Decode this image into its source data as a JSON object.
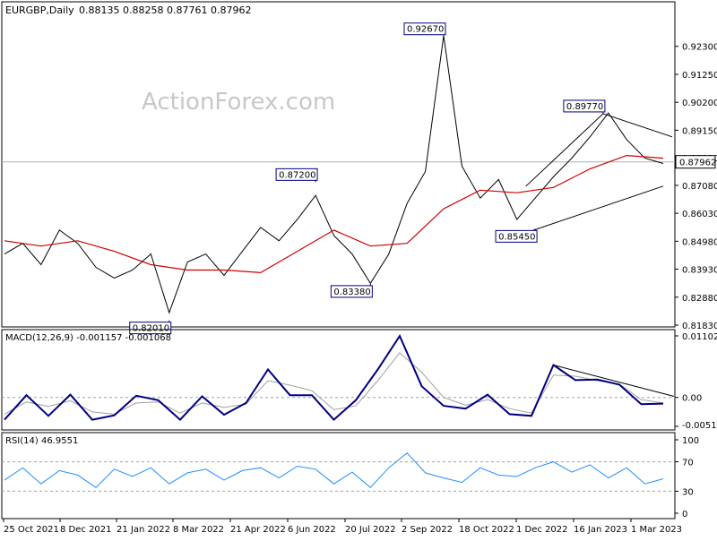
{
  "header": {
    "symbol": "EURGBP,Daily",
    "ohlc": "0.88135 0.88258 0.87761 0.87962"
  },
  "watermark": "ActionForex.com",
  "colors": {
    "price": "#000000",
    "ma": "#cc0000",
    "macd": "#000080",
    "signal": "#a0a0a0",
    "rsi": "#1e90ff",
    "annotation_border": "#000080",
    "current_price_bg": "#ffffff"
  },
  "chart_data": [
    {
      "type": "line",
      "name": "EURGBP Daily",
      "xlabel": "",
      "ylabel": "",
      "x_ticks": [
        "25 Oct 2021",
        "8 Dec 2021",
        "21 Jan 2022",
        "8 Mar 2022",
        "21 Apr 2022",
        "6 Jun 2022",
        "20 Jul 2022",
        "2 Sep 2022",
        "18 Oct 2022",
        "1 Dec 2022",
        "16 Jan 2023",
        "1 Mar 2023"
      ],
      "y_ticks": [
        "0.92300",
        "0.91250",
        "0.90200",
        "0.89150",
        "0.88120",
        "0.87080",
        "0.86030",
        "0.84980",
        "0.83930",
        "0.82880",
        "0.81830"
      ],
      "ylim": [
        0.8183,
        0.9293
      ],
      "current_price": "0.87962",
      "annotations": [
        "0.92670",
        "0.89770",
        "0.87200",
        "0.85450",
        "0.83380",
        "0.82010"
      ],
      "series": [
        {
          "role": "price",
          "points": [
            [
              "2021-10-25",
              0.845
            ],
            [
              "2021-11-08",
              0.849
            ],
            [
              "2021-11-22",
              0.841
            ],
            [
              "2021-12-06",
              0.854
            ],
            [
              "2021-12-20",
              0.849
            ],
            [
              "2022-01-03",
              0.84
            ],
            [
              "2022-01-17",
              0.836
            ],
            [
              "2022-01-31",
              0.839
            ],
            [
              "2022-02-14",
              0.845
            ],
            [
              "2022-02-28",
              0.823
            ],
            [
              "2022-03-14",
              0.842
            ],
            [
              "2022-03-28",
              0.845
            ],
            [
              "2022-04-11",
              0.837
            ],
            [
              "2022-04-25",
              0.846
            ],
            [
              "2022-05-09",
              0.855
            ],
            [
              "2022-05-23",
              0.85
            ],
            [
              "2022-06-06",
              0.858
            ],
            [
              "2022-06-20",
              0.867
            ],
            [
              "2022-07-04",
              0.852
            ],
            [
              "2022-07-18",
              0.845
            ],
            [
              "2022-08-01",
              0.834
            ],
            [
              "2022-08-15",
              0.845
            ],
            [
              "2022-08-29",
              0.864
            ],
            [
              "2022-09-12",
              0.876
            ],
            [
              "2022-09-26",
              0.927
            ],
            [
              "2022-10-10",
              0.878
            ],
            [
              "2022-10-24",
              0.866
            ],
            [
              "2022-11-07",
              0.873
            ],
            [
              "2022-11-21",
              0.858
            ],
            [
              "2022-12-05",
              0.866
            ],
            [
              "2022-12-19",
              0.874
            ],
            [
              "2023-01-02",
              0.881
            ],
            [
              "2023-01-16",
              0.889
            ],
            [
              "2023-01-30",
              0.898
            ],
            [
              "2023-02-13",
              0.888
            ],
            [
              "2023-02-27",
              0.881
            ],
            [
              "2023-03-13",
              0.879
            ]
          ]
        },
        {
          "role": "moving average",
          "points": [
            [
              "2021-10-25",
              0.85
            ],
            [
              "2021-11-22",
              0.848
            ],
            [
              "2021-12-20",
              0.85
            ],
            [
              "2022-01-17",
              0.846
            ],
            [
              "2022-02-14",
              0.841
            ],
            [
              "2022-03-14",
              0.839
            ],
            [
              "2022-04-11",
              0.839
            ],
            [
              "2022-05-09",
              0.838
            ],
            [
              "2022-06-06",
              0.846
            ],
            [
              "2022-07-04",
              0.854
            ],
            [
              "2022-08-01",
              0.848
            ],
            [
              "2022-08-29",
              0.849
            ],
            [
              "2022-09-26",
              0.862
            ],
            [
              "2022-10-24",
              0.869
            ],
            [
              "2022-11-21",
              0.868
            ],
            [
              "2022-12-19",
              0.87
            ],
            [
              "2023-01-16",
              0.877
            ],
            [
              "2023-02-13",
              0.882
            ],
            [
              "2023-03-13",
              0.881
            ]
          ]
        }
      ]
    },
    {
      "type": "line",
      "title": "MACD(12,26,9) -0.001157 -0.001068",
      "y_ticks": [
        "0.011023",
        "0.00",
        "-0.005182"
      ],
      "ylim": [
        -0.00518,
        0.01102
      ],
      "series": [
        {
          "role": "macd",
          "values": [
            -0.004,
            0.0004,
            -0.0033,
            0.0005,
            -0.004,
            -0.0032,
            0.0003,
            -0.0005,
            -0.004,
            0.0002,
            -0.0031,
            -0.001,
            0.005,
            0.0004,
            0.0004,
            -0.004,
            -0.0005,
            0.005,
            0.011,
            0.002,
            -0.0015,
            -0.002,
            0.0005,
            -0.003,
            -0.0033,
            0.0058,
            0.0031,
            0.0032,
            0.0023,
            -0.0012,
            -0.0011
          ]
        },
        {
          "role": "signal",
          "values": [
            -0.003,
            -0.0008,
            -0.0016,
            -0.0006,
            -0.0026,
            -0.003,
            -0.001,
            -0.0008,
            -0.0028,
            -0.001,
            -0.0018,
            -0.0012,
            0.003,
            0.0022,
            0.0012,
            -0.0022,
            -0.0015,
            0.003,
            0.008,
            0.0045,
            0.0,
            -0.0014,
            -0.0004,
            -0.002,
            -0.0028,
            0.004,
            0.0038,
            0.003,
            0.0024,
            -0.0004,
            -0.001
          ]
        }
      ]
    },
    {
      "type": "line",
      "title": "RSI(14) 46.9551",
      "y_ticks": [
        "100",
        "70",
        "30",
        "0"
      ],
      "ylim": [
        0,
        100
      ],
      "series": [
        {
          "role": "rsi",
          "values": [
            45,
            62,
            40,
            58,
            52,
            35,
            60,
            50,
            62,
            40,
            55,
            60,
            45,
            58,
            62,
            48,
            64,
            60,
            40,
            56,
            35,
            62,
            82,
            55,
            48,
            42,
            62,
            52,
            50,
            62,
            70,
            56,
            66,
            48,
            62,
            40,
            47
          ]
        }
      ]
    }
  ]
}
